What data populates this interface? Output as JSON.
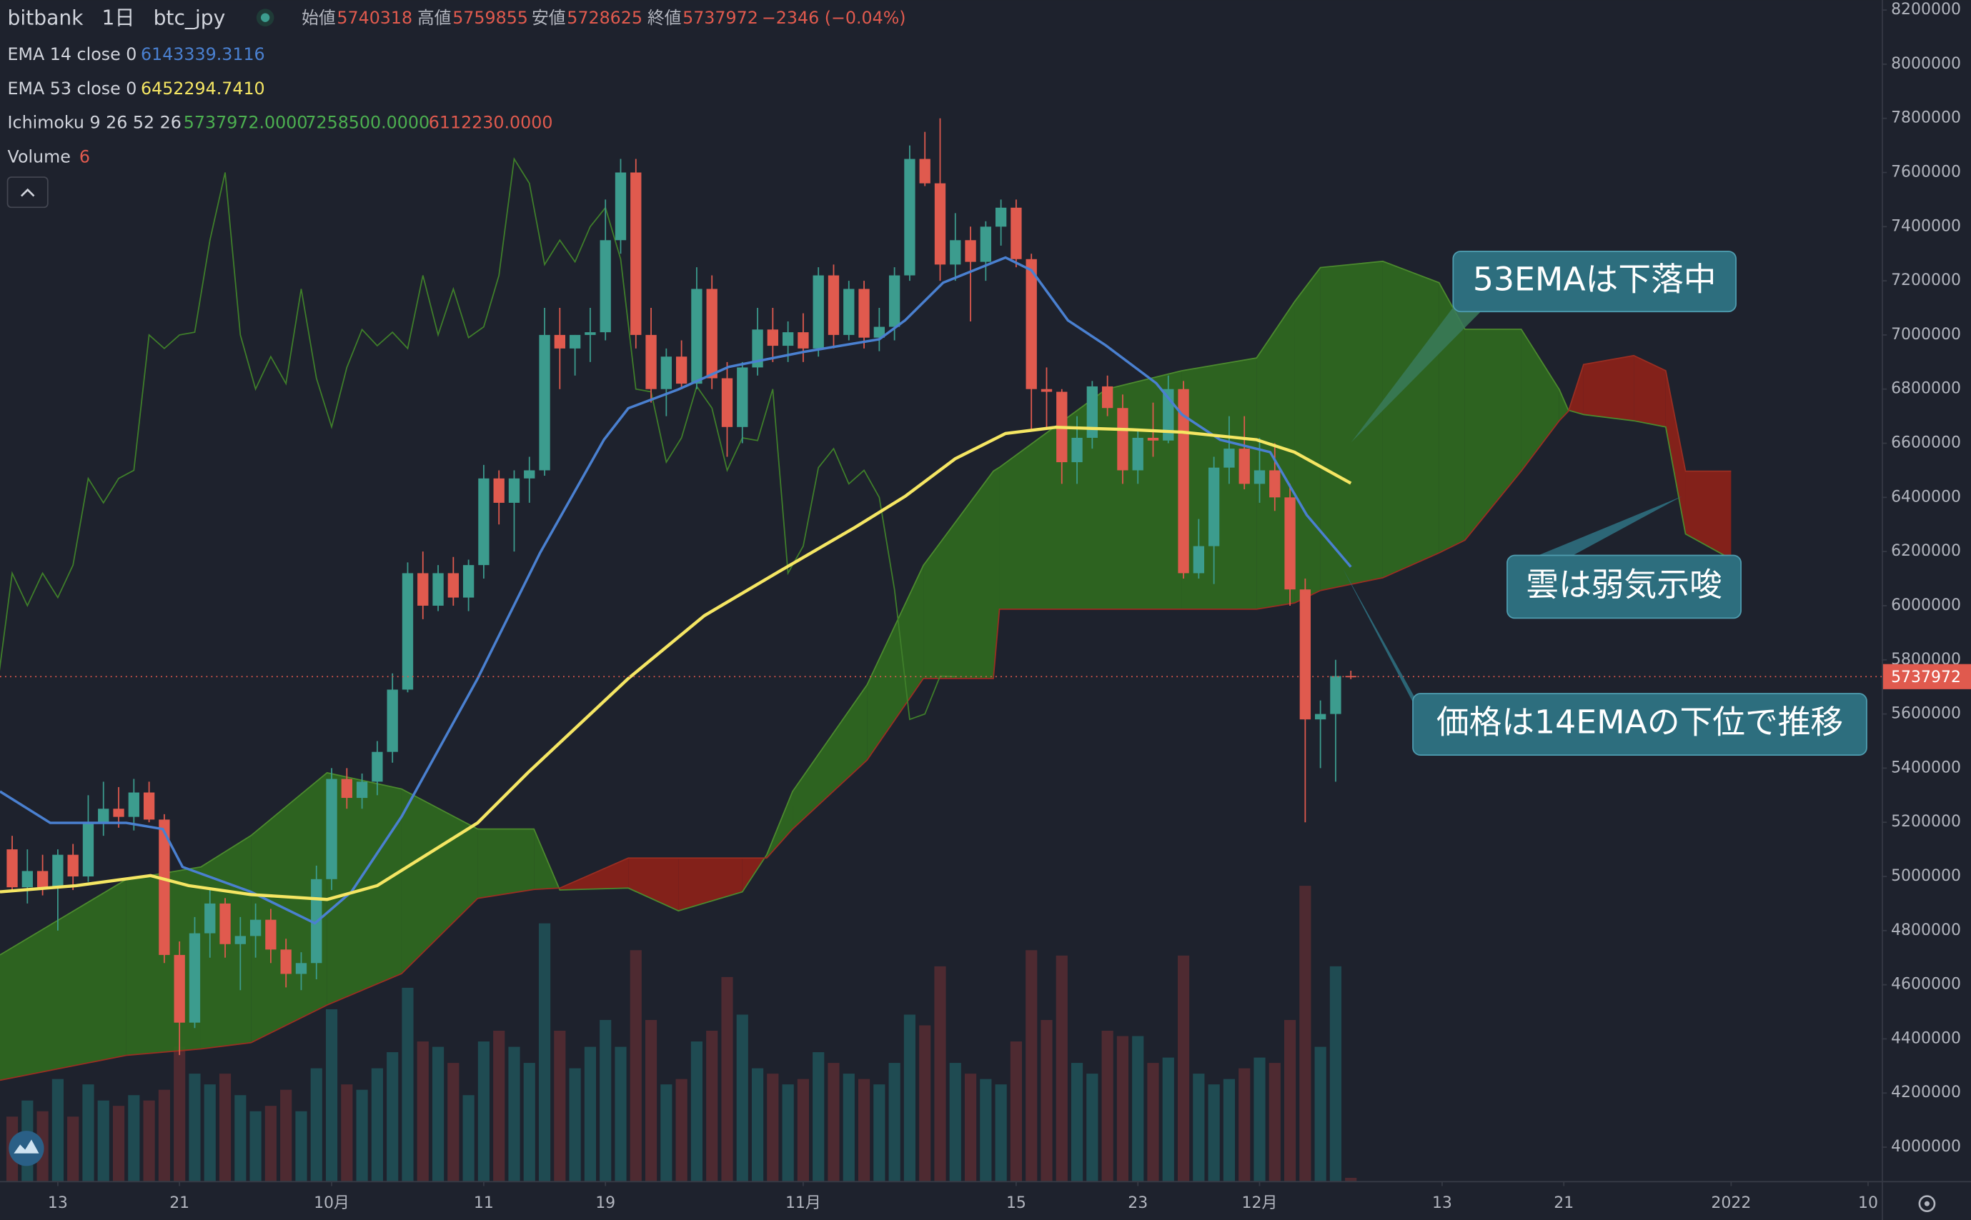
{
  "chart_data": {
    "type": "candlestick",
    "header": {
      "exchange": "bitbank",
      "interval": "1日",
      "symbol": "btc_jpy",
      "open_label": "始値",
      "high_label": "高値",
      "low_label": "安値",
      "close_label": "終値",
      "change": "−2346 (−0.04%)"
    },
    "legend": [
      {
        "text": "EMA 14 close 0",
        "values": [
          {
            "label": "6143339.3116",
            "color": "#4a80d0"
          }
        ]
      },
      {
        "text": "EMA 53 close 0",
        "values": [
          {
            "label": "6452294.7410",
            "color": "#f5e663"
          }
        ]
      },
      {
        "text": "Ichimoku 9 26 52 26",
        "values": [
          {
            "label": "5737972.0000",
            "color": "#4caf50"
          },
          {
            "label": "7258500.0000",
            "color": "#4caf50"
          },
          {
            "label": "6112230.0000",
            "color": "#e05a4e"
          }
        ]
      },
      {
        "text": "Volume",
        "values": []
      }
    ],
    "annotations": [
      "53EMAは下落中",
      "雲は弱気示唆",
      "価格は14EMAの下位で推移"
    ],
    "up_color": "#3c9c8e",
    "down_color": "#e05a4e",
    "volume_up_color": "#1f4b52",
    "volume_down_color": "#4e2a31",
    "grid": false,
    "xlim": [
      -3.8,
      119.9
    ],
    "xticks": [
      {
        "value": 0,
        "label": "13"
      },
      {
        "value": 8,
        "label": "21"
      },
      {
        "value": 18,
        "label": "10月"
      },
      {
        "value": 28,
        "label": "11"
      },
      {
        "value": 36,
        "label": "19"
      },
      {
        "value": 49,
        "label": "11月"
      },
      {
        "value": 63,
        "label": "15"
      },
      {
        "value": 71,
        "label": "23"
      },
      {
        "value": 79,
        "label": "12月"
      },
      {
        "value": 91,
        "label": "13"
      },
      {
        "value": 99,
        "label": "21"
      },
      {
        "value": 110,
        "label": "2022"
      },
      {
        "value": 119,
        "label": "10"
      }
    ],
    "ylim": [
      3875000,
      8237000
    ],
    "yticks": [
      4000000,
      4200000,
      4400000,
      4600000,
      4800000,
      5000000,
      5200000,
      5400000,
      5600000,
      5800000,
      6000000,
      6200000,
      6400000,
      6600000,
      6800000,
      7000000,
      7200000,
      7400000,
      7600000,
      7800000,
      8000000,
      8200000
    ],
    "x": [
      -3,
      -2,
      -1,
      0,
      1,
      2,
      3,
      4,
      5,
      6,
      7,
      8,
      9,
      10,
      11,
      12,
      13,
      14,
      15,
      16,
      17,
      18,
      19,
      20,
      21,
      22,
      23,
      24,
      25,
      26,
      27,
      28,
      29,
      30,
      31,
      32,
      33,
      34,
      35,
      36,
      37,
      38,
      39,
      40,
      41,
      42,
      43,
      44,
      45,
      46,
      47,
      48,
      49,
      50,
      51,
      52,
      53,
      54,
      55,
      56,
      57,
      58,
      59,
      60,
      61,
      62,
      63,
      64,
      65,
      66,
      67,
      68,
      69,
      70,
      71,
      72,
      73,
      74,
      75,
      76,
      77,
      78,
      79,
      80,
      81,
      82,
      83,
      84,
      85
    ],
    "open": [
      5100000,
      4960000,
      5020000,
      4960000,
      5080000,
      5000000,
      5200000,
      5250000,
      5220000,
      5310000,
      5210000,
      4710000,
      4460000,
      4790000,
      4900000,
      4750000,
      4780000,
      4840000,
      4730000,
      4640000,
      4680000,
      4990000,
      5360000,
      5290000,
      5350000,
      5460000,
      5690000,
      6120000,
      6000000,
      6120000,
      6030000,
      6150000,
      6470000,
      6380000,
      6470000,
      6500000,
      7000000,
      6950000,
      7000000,
      7010000,
      7350000,
      7600000,
      7000000,
      6800000,
      6920000,
      6820000,
      7170000,
      6840000,
      6660000,
      6880000,
      7020000,
      6960000,
      7010000,
      6950000,
      7220000,
      7000000,
      7170000,
      6990000,
      7030000,
      7220000,
      7650000,
      7560000,
      7260000,
      7350000,
      7270000,
      7400000,
      7470000,
      7280000,
      6800000,
      6790000,
      6530000,
      6620000,
      6810000,
      6730000,
      6500000,
      6620000,
      6610000,
      6800000,
      6120000,
      6220000,
      6510000,
      6580000,
      6450000,
      6500000,
      6400000,
      6060000,
      5580000,
      5600000,
      5740318
    ],
    "high": [
      5150000,
      5100000,
      5080000,
      5100000,
      5120000,
      5300000,
      5350000,
      5330000,
      5360000,
      5350000,
      5230000,
      4760000,
      4850000,
      4950000,
      4920000,
      4850000,
      4900000,
      4880000,
      4770000,
      4720000,
      5040000,
      5400000,
      5400000,
      5380000,
      5500000,
      5750000,
      6160000,
      6200000,
      6150000,
      6180000,
      6170000,
      6520000,
      6500000,
      6500000,
      6550000,
      7100000,
      7100000,
      7000000,
      7100000,
      7500000,
      7650000,
      7650000,
      7100000,
      6950000,
      6980000,
      7250000,
      7220000,
      6900000,
      6900000,
      7100000,
      7100000,
      7050000,
      7080000,
      7250000,
      7260000,
      7200000,
      7200000,
      7100000,
      7250000,
      7700000,
      7750000,
      7800000,
      7450000,
      7400000,
      7420000,
      7500000,
      7500000,
      7300000,
      6880000,
      6800000,
      6700000,
      6830000,
      6850000,
      6780000,
      6650000,
      6750000,
      6850000,
      6830000,
      6320000,
      6550000,
      6700000,
      6700000,
      6620000,
      6600000,
      6450000,
      6100000,
      5650000,
      5800000,
      5759855
    ],
    "low": [
      4950000,
      4900000,
      4930000,
      4800000,
      4950000,
      4980000,
      5150000,
      5180000,
      5170000,
      5200000,
      4680000,
      4340000,
      4440000,
      4700000,
      4700000,
      4580000,
      4700000,
      4680000,
      4590000,
      4580000,
      4620000,
      4950000,
      5250000,
      5250000,
      5300000,
      5420000,
      5680000,
      5950000,
      5980000,
      6000000,
      5980000,
      6100000,
      6300000,
      6200000,
      6380000,
      6480000,
      6800000,
      6850000,
      6900000,
      6980000,
      7300000,
      6950000,
      6750000,
      6700000,
      6800000,
      6800000,
      6800000,
      6550000,
      6600000,
      6850000,
      6900000,
      6900000,
      6900000,
      6920000,
      6950000,
      6980000,
      6950000,
      6940000,
      6980000,
      7200000,
      7550000,
      7200000,
      7200000,
      7050000,
      7200000,
      7330000,
      7250000,
      6650000,
      6650000,
      6450000,
      6450000,
      6580000,
      6700000,
      6450000,
      6450000,
      6550000,
      6600000,
      6100000,
      6100000,
      6080000,
      6450000,
      6430000,
      6380000,
      6350000,
      6000000,
      5200000,
      5400000,
      5350000,
      5728625
    ],
    "close": [
      4960000,
      5020000,
      4960000,
      5080000,
      5000000,
      5200000,
      5250000,
      5220000,
      5310000,
      5210000,
      4710000,
      4460000,
      4790000,
      4900000,
      4750000,
      4780000,
      4840000,
      4730000,
      4640000,
      4680000,
      4990000,
      5360000,
      5290000,
      5350000,
      5460000,
      5690000,
      6120000,
      6000000,
      6120000,
      6030000,
      6150000,
      6470000,
      6380000,
      6470000,
      6500000,
      7000000,
      6950000,
      7000000,
      7010000,
      7350000,
      7600000,
      7000000,
      6800000,
      6920000,
      6820000,
      7170000,
      6840000,
      6660000,
      6880000,
      7020000,
      6960000,
      7010000,
      6950000,
      7220000,
      7000000,
      7170000,
      6990000,
      7030000,
      7220000,
      7650000,
      7560000,
      7260000,
      7350000,
      7270000,
      7400000,
      7470000,
      7280000,
      6800000,
      6790000,
      6530000,
      6620000,
      6810000,
      6730000,
      6500000,
      6620000,
      6610000,
      6800000,
      6120000,
      6220000,
      6510000,
      6580000,
      6450000,
      6500000,
      6400000,
      6060000,
      5580000,
      5600000,
      5740000,
      5737972
    ],
    "volume": [
      120,
      150,
      130,
      190,
      120,
      180,
      150,
      140,
      160,
      150,
      170,
      250,
      200,
      180,
      200,
      160,
      130,
      140,
      170,
      130,
      210,
      320,
      180,
      170,
      210,
      240,
      360,
      260,
      250,
      220,
      160,
      260,
      280,
      250,
      220,
      480,
      280,
      210,
      250,
      300,
      250,
      430,
      300,
      180,
      190,
      260,
      280,
      380,
      310,
      210,
      200,
      180,
      190,
      240,
      220,
      200,
      190,
      180,
      220,
      310,
      290,
      400,
      220,
      200,
      190,
      180,
      260,
      430,
      300,
      420,
      220,
      200,
      280,
      270,
      270,
      220,
      230,
      420,
      200,
      180,
      190,
      210,
      230,
      220,
      300,
      550,
      250,
      400,
      6
    ],
    "lines": [
      {
        "name": "EMA 14",
        "color": "#4a80d0",
        "x": [
          -3.8,
          -0.5,
          4.5,
          6.9,
          8.2,
          12.7,
          16.9,
          19.3,
          22.6,
          27.6,
          31.7,
          35.9,
          37.5,
          40.8,
          44.1,
          49.1,
          54,
          55.7,
          58.2,
          62.3,
          64,
          66.4,
          68.9,
          72.2,
          73.9,
          76.4,
          79.7,
          82.1,
          85
        ],
        "values": [
          5314000,
          5198000,
          5198000,
          5175000,
          5035000,
          4943000,
          4827000,
          4943000,
          5221000,
          5731000,
          6195000,
          6613000,
          6729000,
          6799000,
          6882000,
          6938000,
          6984000,
          7054000,
          7193000,
          7286000,
          7239000,
          7054000,
          6961000,
          6822000,
          6706000,
          6613000,
          6567000,
          6335000,
          6143339.3116
        ]
      },
      {
        "name": "EMA 53",
        "color": "#f5e663",
        "x": [
          -3.8,
          1.2,
          6.1,
          8.6,
          12.7,
          17.7,
          21,
          27.6,
          30.9,
          37.5,
          42.5,
          47.4,
          52.4,
          55.7,
          59,
          62.3,
          65.6,
          70.6,
          73.9,
          78.8,
          81.3,
          85
        ],
        "values": [
          4943000,
          4966000,
          5003000,
          4966000,
          4933000,
          4915000,
          4966000,
          5198000,
          5383000,
          5731000,
          5963000,
          6126000,
          6289000,
          6404000,
          6543000,
          6636000,
          6659000,
          6650000,
          6641000,
          6613000,
          6567000,
          6452294.741
        ]
      }
    ],
    "lagging_color": "#3f7f2a",
    "cloud": {
      "up_color": "#2f6a1f",
      "down_color": "#8e2118",
      "span_a_color": "#4c8a2e",
      "span_b_color": "#9a2e22",
      "x": [
        -3.8,
        4.5,
        9.4,
        12.7,
        17.7,
        22.6,
        27.6,
        31.3,
        33,
        37.5,
        40.8,
        45,
        46.6,
        48.3,
        53.2,
        56.9,
        61.5,
        61.9,
        68.9,
        73.9,
        78.8,
        81.3,
        83,
        87.1,
        90.8,
        92.5,
        96.2,
        98.7,
        99.3,
        100.3,
        103.6,
        105.7,
        107,
        110
      ],
      "span_a": [
        4710000,
        4989000,
        5035000,
        5151000,
        5383000,
        5323000,
        5175000,
        5175000,
        4950000,
        4957000,
        4873000,
        4943000,
        5080000,
        5314000,
        5708000,
        6149000,
        6497000,
        6511000,
        6799000,
        6868000,
        6915000,
        7123000,
        7249000,
        7272000,
        7193000,
        7021000,
        7021000,
        6799000,
        6722000,
        6706000,
        6683000,
        6660000,
        6265000,
        6172000
      ],
      "span_b": [
        4247000,
        4339000,
        4363000,
        4386000,
        4525000,
        4641000,
        4919000,
        4952000,
        4957000,
        5068000,
        5068000,
        5068000,
        5068000,
        5175000,
        5430000,
        5731000,
        5731000,
        5987000,
        5987000,
        5987000,
        5987000,
        6010000,
        6056000,
        6103000,
        6195000,
        6242000,
        6497000,
        6683000,
        6718000,
        6891000,
        6924000,
        6868000,
        6497000,
        6497000
      ]
    },
    "last_price_color": "#e05a4e"
  }
}
